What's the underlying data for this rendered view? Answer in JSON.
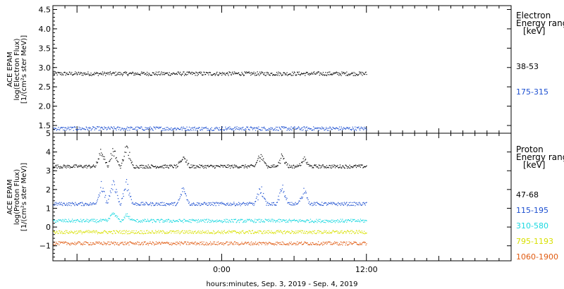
{
  "colors": {
    "black": "#000000",
    "blue": "#1c4fd0",
    "cyan": "#18d8e0",
    "yellow": "#d8e000",
    "orange": "#e05a10"
  },
  "x_axis_label": "hours:minutes, Sep.  3, 2019 - Sep.  4, 2019",
  "chart_data": [
    {
      "type": "scatter",
      "ylabel_lines": [
        "ACE EPAM",
        "log(Electron Flux)",
        "[1/(cm²s ster MeV)]"
      ],
      "ylim": [
        1.3,
        4.6
      ],
      "yticks": [
        1.5,
        2.0,
        2.5,
        3.0,
        3.5,
        4.0,
        4.5
      ],
      "ytick_labels": [
        "1.5",
        "2.0",
        "2.5",
        "3.0",
        "3.5",
        "4.0",
        "4.5"
      ],
      "legend_title": [
        "Electron",
        "Energy ranges",
        "[keV]"
      ],
      "series": [
        {
          "name": "38-53",
          "color": "#000000",
          "level": 2.85
        },
        {
          "name": "175-315",
          "color": "#1c4fd0",
          "level": 1.43
        }
      ]
    },
    {
      "type": "scatter",
      "ylabel_lines": [
        "ACE EPAM",
        "log(Proton Flux)",
        "[1/(cm²s ster MeV)]"
      ],
      "ylim": [
        -1.8,
        5.0
      ],
      "yticks": [
        -1,
        0,
        1,
        2,
        3,
        4,
        5
      ],
      "ytick_labels": [
        "−1",
        "0",
        "1",
        "2",
        "3",
        "4",
        "5"
      ],
      "legend_title": [
        "Proton",
        "Energy ranges",
        "[keV]"
      ],
      "series": [
        {
          "name": "47-68",
          "color": "#000000",
          "level": 3.25,
          "peaks": [
            [
              -10.0,
              0.9
            ],
            [
              -9.0,
              1.0
            ],
            [
              -7.9,
              1.1
            ],
            [
              -3.2,
              0.6
            ],
            [
              3.2,
              0.7
            ],
            [
              5.0,
              0.6
            ],
            [
              6.8,
              0.4
            ]
          ]
        },
        {
          "name": "115-195",
          "color": "#1c4fd0",
          "level": 1.25,
          "peaks": [
            [
              -10.0,
              1.0
            ],
            [
              -9.0,
              1.3
            ],
            [
              -7.9,
              1.2
            ],
            [
              -3.2,
              0.9
            ],
            [
              3.2,
              0.9
            ],
            [
              5.0,
              0.9
            ],
            [
              6.8,
              0.8
            ]
          ]
        },
        {
          "name": "310-580",
          "color": "#18d8e0",
          "level": 0.35,
          "peaks": [
            [
              -9.0,
              0.5
            ],
            [
              -7.9,
              0.3
            ]
          ]
        },
        {
          "name": "795-1193",
          "color": "#d8e000",
          "level": -0.25
        },
        {
          "name": "1060-1900",
          "color": "#e05a10",
          "level": -0.85
        }
      ]
    }
  ],
  "x_axis": {
    "ticks": [
      0,
      12
    ],
    "tick_labels": [
      "0:00",
      "12:00"
    ],
    "range_hours": [
      -14.0,
      24.0
    ],
    "data_range_hours": [
      -14.0,
      12.0
    ]
  }
}
